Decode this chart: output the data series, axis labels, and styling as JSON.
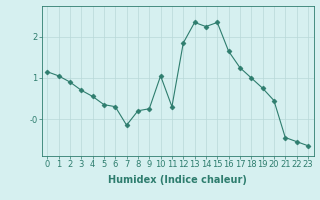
{
  "x": [
    0,
    1,
    2,
    3,
    4,
    5,
    6,
    7,
    8,
    9,
    10,
    11,
    12,
    13,
    14,
    15,
    16,
    17,
    18,
    19,
    20,
    21,
    22,
    23
  ],
  "y": [
    1.15,
    1.05,
    0.9,
    0.7,
    0.55,
    0.35,
    0.3,
    -0.15,
    0.2,
    0.25,
    1.05,
    0.3,
    1.85,
    2.35,
    2.25,
    2.35,
    1.65,
    1.25,
    1.0,
    0.75,
    0.45,
    -0.45,
    -0.55,
    -0.65
  ],
  "line_color": "#2e7d6e",
  "marker": "D",
  "marker_size": 2.5,
  "background_color": "#d6f0f0",
  "grid_color": "#b8d8d8",
  "xlabel": "Humidex (Indice chaleur)",
  "xlim": [
    -0.5,
    23.5
  ],
  "ylim": [
    -0.9,
    2.75
  ],
  "yticks": [
    0.0,
    1.0,
    2.0
  ],
  "ytick_labels": [
    "-0",
    "1",
    "2"
  ],
  "xticks": [
    0,
    1,
    2,
    3,
    4,
    5,
    6,
    7,
    8,
    9,
    10,
    11,
    12,
    13,
    14,
    15,
    16,
    17,
    18,
    19,
    20,
    21,
    22,
    23
  ],
  "label_fontsize": 7,
  "tick_fontsize": 6
}
